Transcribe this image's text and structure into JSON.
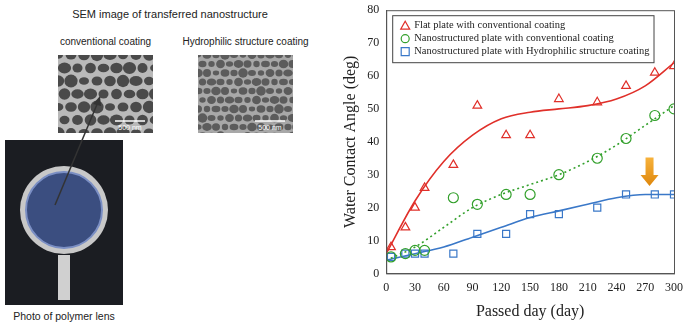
{
  "figure": {
    "title": "SEM image of transferred nanostructure",
    "panels": [
      {
        "label": "conventional coating",
        "scale_bar": "500 nm"
      },
      {
        "label": "Hydrophilic structure coating",
        "scale_bar": "500 nm"
      }
    ],
    "photo_caption": "Photo of polymer lens"
  },
  "chart_data": {
    "type": "scatter",
    "x_label": "Passed day (day)",
    "y_label": "Water Contact Angle (deg)",
    "xlim": [
      0,
      300
    ],
    "xticks": [
      0,
      30,
      60,
      90,
      120,
      150,
      180,
      210,
      240,
      270,
      300
    ],
    "ylim": [
      0,
      80
    ],
    "yticks": [
      0,
      10,
      20,
      30,
      40,
      50,
      60,
      70,
      80
    ],
    "grid": false,
    "legend": "upper left",
    "series": [
      {
        "name": "Flat plate with conventional coating",
        "color": "#e0302a",
        "marker": "triangle",
        "x": [
          5,
          20,
          30,
          40,
          70,
          95,
          125,
          150,
          180,
          220,
          250,
          280,
          300
        ],
        "values": [
          8,
          14,
          20,
          26,
          33,
          51,
          42,
          42,
          53,
          52,
          57,
          61,
          63
        ],
        "trend": {
          "line_style": "solid",
          "x": [
            0,
            30,
            60,
            90,
            120,
            150,
            180,
            210,
            240,
            270,
            300
          ],
          "values": [
            6,
            22,
            34,
            42,
            47,
            49,
            50,
            51,
            53,
            57,
            64
          ]
        }
      },
      {
        "name": "Nanostructured plate with conventional coating",
        "color": "#33a02c",
        "marker": "circle",
        "x": [
          5,
          20,
          30,
          40,
          70,
          95,
          125,
          150,
          180,
          220,
          250,
          280,
          300
        ],
        "values": [
          5,
          6,
          7,
          7,
          23,
          21,
          24,
          24,
          30,
          35,
          41,
          48,
          50
        ],
        "trend": {
          "line_style": "dotted",
          "x": [
            0,
            30,
            60,
            90,
            120,
            150,
            180,
            210,
            240,
            270,
            300
          ],
          "values": [
            4,
            8,
            14,
            20,
            24,
            27,
            30,
            34,
            39,
            45,
            51
          ]
        }
      },
      {
        "name": "Nanostructured plate with Hydrophilic structure coating",
        "color": "#3a78c8",
        "marker": "square",
        "x": [
          5,
          20,
          30,
          40,
          70,
          95,
          125,
          150,
          180,
          220,
          250,
          280,
          300
        ],
        "values": [
          5,
          6,
          6,
          6,
          6,
          12,
          12,
          18,
          18,
          20,
          24,
          24,
          24
        ],
        "trend": {
          "line_style": "solid",
          "x": [
            0,
            30,
            60,
            90,
            120,
            150,
            180,
            210,
            240,
            270,
            300
          ],
          "values": [
            4,
            6,
            8,
            11,
            14,
            17,
            19,
            21,
            23,
            24,
            24
          ]
        }
      }
    ]
  }
}
